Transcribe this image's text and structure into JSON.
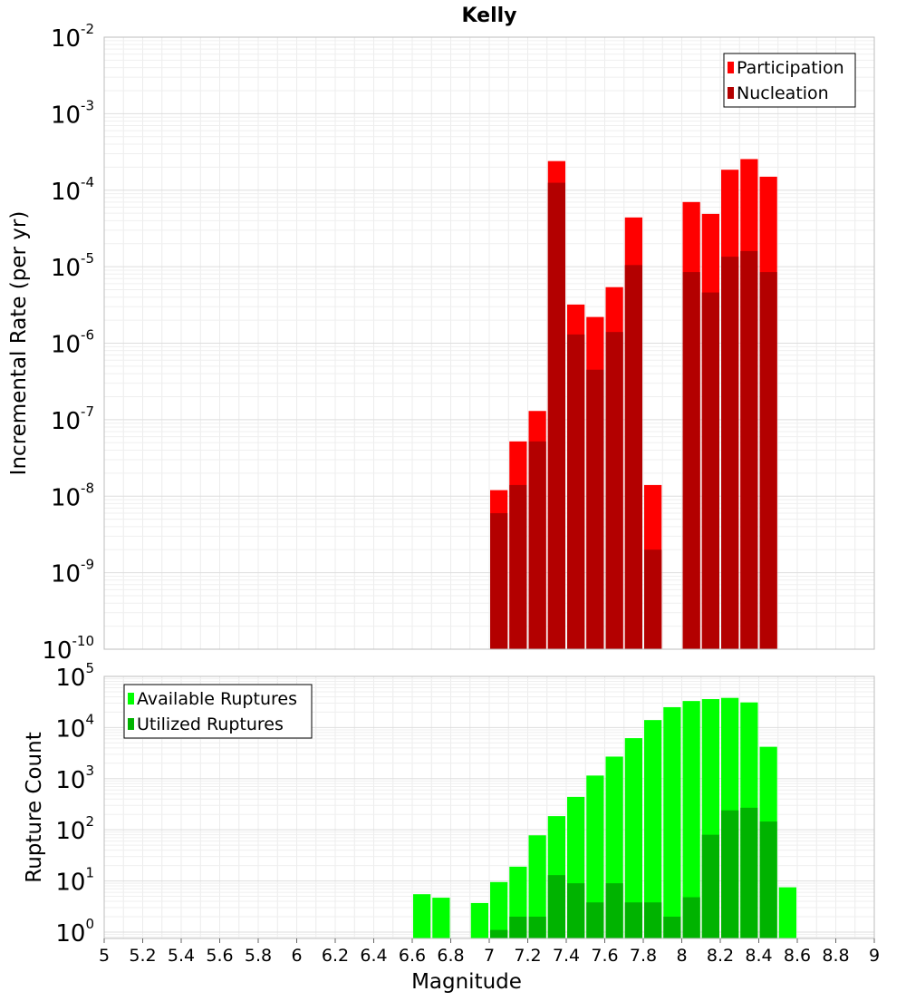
{
  "chart_data": [
    {
      "type": "bar",
      "title": "Kelly",
      "xlabel": "",
      "ylabel": "Incremental Rate (per yr)",
      "yscale": "log",
      "ylim": [
        1e-10,
        0.01
      ],
      "xlim": [
        5,
        9
      ],
      "bar_width": 0.1,
      "grid": true,
      "legend_position": "top-right",
      "y_ticks": [
        {
          "base": "10",
          "exp": "-10",
          "value": 1e-10
        },
        {
          "base": "10",
          "exp": "-9",
          "value": 1e-09
        },
        {
          "base": "10",
          "exp": "-8",
          "value": 1e-08
        },
        {
          "base": "10",
          "exp": "-7",
          "value": 1e-07
        },
        {
          "base": "10",
          "exp": "-6",
          "value": 1e-06
        },
        {
          "base": "10",
          "exp": "-5",
          "value": 1e-05
        },
        {
          "base": "10",
          "exp": "-4",
          "value": 0.0001
        },
        {
          "base": "10",
          "exp": "-3",
          "value": 0.001
        },
        {
          "base": "10",
          "exp": "-2",
          "value": 0.01
        }
      ],
      "x": [
        7.05,
        7.15,
        7.25,
        7.35,
        7.45,
        7.55,
        7.65,
        7.75,
        7.85,
        8.05,
        8.15,
        8.25,
        8.35,
        8.45
      ],
      "series": [
        {
          "name": "Participation",
          "color": "#ff0000",
          "values": [
            1.2e-08,
            5.2e-08,
            1.3e-07,
            0.00024,
            3.2e-06,
            2.2e-06,
            5.4e-06,
            4.4e-05,
            1.4e-08,
            7e-05,
            4.9e-05,
            0.000185,
            0.000255,
            0.00015
          ]
        },
        {
          "name": "Nucleation",
          "color": "#b30000",
          "values": [
            6e-09,
            1.4e-08,
            5.2e-08,
            0.000125,
            1.3e-06,
            4.5e-07,
            1.4e-06,
            1.05e-05,
            2e-09,
            8.5e-06,
            4.6e-06,
            1.35e-05,
            1.6e-05,
            8.5e-06
          ]
        }
      ]
    },
    {
      "type": "bar",
      "title": "",
      "xlabel": "Magnitude",
      "ylabel": "Rupture Count",
      "yscale": "log",
      "ylim": [
        0.75,
        100000
      ],
      "xlim": [
        5,
        9
      ],
      "bar_width": 0.1,
      "grid": true,
      "legend_position": "top-left",
      "y_ticks": [
        {
          "base": "10",
          "exp": "0",
          "value": 1
        },
        {
          "base": "10",
          "exp": "1",
          "value": 10
        },
        {
          "base": "10",
          "exp": "2",
          "value": 100
        },
        {
          "base": "10",
          "exp": "3",
          "value": 1000
        },
        {
          "base": "10",
          "exp": "4",
          "value": 10000
        },
        {
          "base": "10",
          "exp": "5",
          "value": 100000
        }
      ],
      "x_ticks": [
        "5",
        "5.2",
        "5.4",
        "5.6",
        "5.8",
        "6",
        "6.2",
        "6.4",
        "6.6",
        "6.8",
        "7",
        "7.2",
        "7.4",
        "7.6",
        "7.8",
        "8",
        "8.2",
        "8.4",
        "8.6",
        "8.8",
        "9"
      ],
      "x": [
        6.65,
        6.75,
        6.95,
        7.05,
        7.15,
        7.25,
        7.35,
        7.45,
        7.55,
        7.65,
        7.75,
        7.85,
        7.95,
        8.05,
        8.15,
        8.25,
        8.35,
        8.45,
        8.55
      ],
      "series": [
        {
          "name": "Available Ruptures",
          "color": "#00ff00",
          "values": [
            5.5,
            4.7,
            3.7,
            9.5,
            19,
            78,
            185,
            440,
            1150,
            2700,
            6200,
            14000,
            25000,
            33000,
            36000,
            38000,
            31000,
            4200,
            7.5
          ]
        },
        {
          "name": "Utilized Ruptures",
          "color": "#00b300",
          "values": [
            null,
            null,
            null,
            1.1,
            2.0,
            2.0,
            13,
            9,
            3.8,
            9,
            3.8,
            3.8,
            2.0,
            4.8,
            80,
            240,
            270,
            145,
            null
          ]
        }
      ]
    }
  ]
}
